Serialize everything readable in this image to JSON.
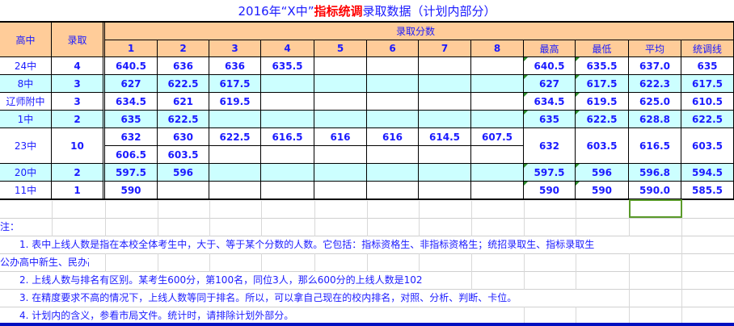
{
  "title": {
    "pre": "2016年“X中”",
    "red": "指标统调",
    "post": "录取数据（计划内部分）"
  },
  "headers": {
    "school": "高中",
    "admit": "录取",
    "scores": "录取分数",
    "score_cols": [
      "1",
      "2",
      "3",
      "4",
      "5",
      "6",
      "7",
      "8"
    ],
    "max": "最高",
    "min": "最低",
    "avg": "平均",
    "line": "统调线"
  },
  "rows": [
    {
      "school": "24中",
      "admit": "4",
      "scores": [
        "640.5",
        "636",
        "636",
        "635.5"
      ],
      "max": "640.5",
      "min": "635.5",
      "avg": "637.0",
      "line": "635"
    },
    {
      "school": "8中",
      "admit": "3",
      "scores": [
        "627",
        "622.5",
        "617.5"
      ],
      "max": "627",
      "min": "617.5",
      "avg": "622.3",
      "line": "617.5"
    },
    {
      "school": "辽师附中",
      "admit": "3",
      "scores": [
        "634.5",
        "621",
        "619.5"
      ],
      "max": "634.5",
      "min": "619.5",
      "avg": "625.0",
      "line": "610.5"
    },
    {
      "school": "1中",
      "admit": "2",
      "scores": [
        "635",
        "622.5"
      ],
      "max": "635",
      "min": "622.5",
      "avg": "628.8",
      "line": "622.5"
    },
    {
      "school": "23中",
      "admit": "10",
      "scores": [
        "632",
        "630",
        "622.5",
        "616.5",
        "616",
        "616",
        "614.5",
        "607.5"
      ],
      "scores2": [
        "606.5",
        "603.5"
      ],
      "max": "632",
      "min": "603.5",
      "avg": "616.5",
      "line": "603.5"
    },
    {
      "school": "20中",
      "admit": "2",
      "scores": [
        "597.5",
        "596"
      ],
      "max": "597.5",
      "min": "596",
      "avg": "596.8",
      "line": "594.5"
    },
    {
      "school": "11中",
      "admit": "1",
      "scores": [
        "590"
      ],
      "max": "590",
      "min": "590",
      "avg": "590.0",
      "line": "585.5"
    }
  ],
  "notes": [
    "注：",
    "　　1. 表中上线人数是指在本校全体考生中，大于、等于某个分数的人数。它包括：指标资格生、非指标资格生；统招录取生、指标录取生",
    "公办高中新生、民办高中新生。",
    "　　2. 上线人数与排名有区别。某考生600分，第100名，同位3人，那么600分的上线人数是102",
    "　　3. 在精度要求不高的情况下，上线人数等同于排名。所以，可以拿自己现在的校内排名，对照、分析、判断、卡位。",
    "　　4. 计划内的含义，参看市局文件。统计时，请排除计划外部分。"
  ],
  "colors": {
    "text": "#1a1aff",
    "header_bg": "#ffcc99",
    "alt_row_bg": "#ccffff",
    "title_red": "#ff0000"
  }
}
